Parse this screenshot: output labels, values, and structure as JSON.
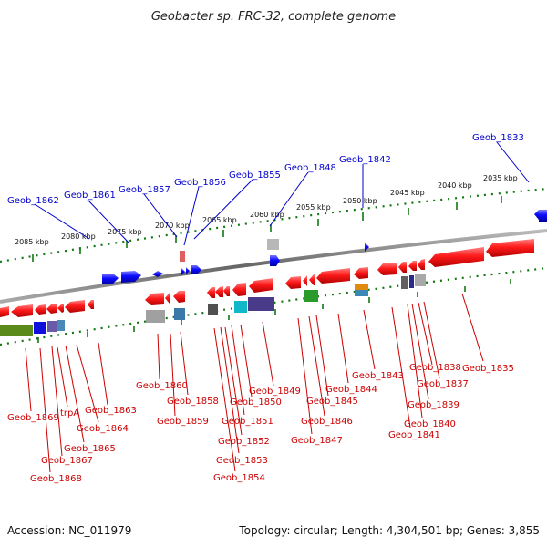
{
  "title": "Geobacter sp. FRC-32, complete genome",
  "footer": {
    "accession": "Accession: NC_011979",
    "summary": "Topology: circular; Length: 4,304,501 bp; Genes: 3,855"
  },
  "colors": {
    "top_label": "#0000cc",
    "bottom_label": "#cc0000",
    "tick": "#117711",
    "backbone": "#888888",
    "forward_gene": "#0000ee",
    "reverse_gene": "#ee1111"
  },
  "scale_labels": [
    "2085 kbp",
    "2080 kbp",
    "2075 kbp",
    "2070 kbp",
    "2065 kbp",
    "2060 kbp",
    "2055 kbp",
    "2050 kbp",
    "2045 kbp",
    "2040 kbp",
    "2035 kbp"
  ],
  "top_genes": [
    "Geob_1862",
    "Geob_1861",
    "Geob_1857",
    "Geob_1856",
    "Geob_1855",
    "Geob_1848",
    "Geob_1842",
    "Geob_1833"
  ],
  "bottom_genes": [
    "Geob_1869",
    "Geob_1868",
    "Geob_1867",
    "trpA",
    "Geob_1865",
    "Geob_1864",
    "Geob_1863",
    "Geob_1860",
    "Geob_1859",
    "Geob_1858",
    "Geob_1854",
    "Geob_1853",
    "Geob_1852",
    "Geob_1851",
    "Geob_1850",
    "Geob_1849",
    "Geob_1847",
    "Geob_1846",
    "Geob_1845",
    "Geob_1844",
    "Geob_1843",
    "Geob_1841",
    "Geob_1840",
    "Geob_1839",
    "Geob_1838",
    "Geob_1837",
    "Geob_1835"
  ]
}
